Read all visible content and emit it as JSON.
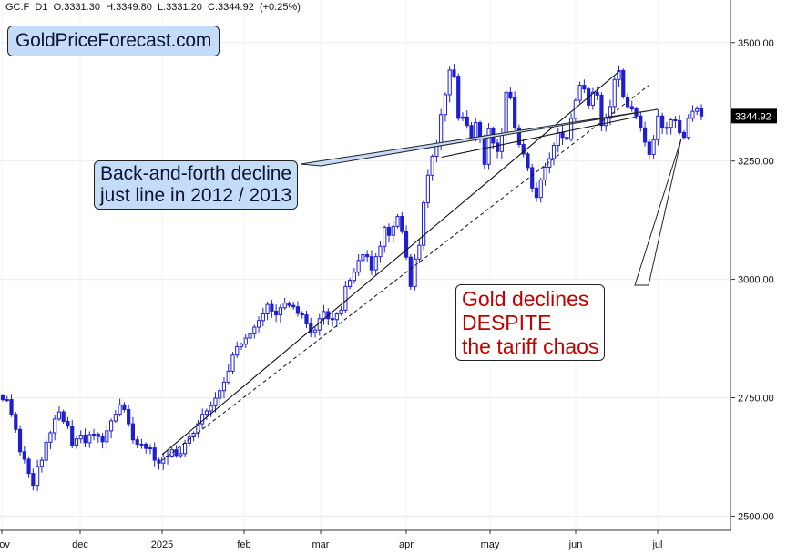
{
  "header": {
    "symbol": "GC.F",
    "interval": "D1",
    "open": "O:3331.30",
    "high": "H:3349.80",
    "low": "L:3331.20",
    "close": "C:3344.92",
    "change": "(+0.25%)"
  },
  "brand": "GoldPriceForecast.com",
  "annotations": {
    "callout1": [
      "Back-and-forth decline",
      "just line in 2012 / 2013"
    ],
    "callout2": [
      "Gold declines",
      "DESPITE",
      "the tariff chaos"
    ]
  },
  "colors": {
    "candle": "#1f1fd0",
    "callout_fill": "#c5dcf8",
    "callout2_text": "#c00000",
    "last_price_bg": "#000000"
  },
  "chart_data": {
    "type": "candlestick",
    "y_ticks": [
      "3500.00",
      "3250.00",
      "3000.00",
      "2750.00",
      "2500.00"
    ],
    "ylim": [
      2470,
      3590
    ],
    "last_price_label": "3344.92",
    "x_ticks": [
      "nov",
      "dec",
      "2025",
      "feb",
      "mar",
      "apr",
      "may",
      "jun",
      "jul"
    ],
    "grid": true,
    "close_values": [
      2746,
      2746,
      2715,
      2683,
      2636,
      2620,
      2590,
      2565,
      2605,
      2618,
      2656,
      2676,
      2705,
      2720,
      2700,
      2690,
      2650,
      2663,
      2671,
      2655,
      2672,
      2673,
      2668,
      2657,
      2680,
      2701,
      2715,
      2735,
      2725,
      2695,
      2661,
      2652,
      2652,
      2643,
      2644,
      2618,
      2612,
      2625,
      2627,
      2640,
      2628,
      2632,
      2654,
      2667,
      2675,
      2695,
      2715,
      2722,
      2733,
      2749,
      2765,
      2783,
      2806,
      2840,
      2858,
      2863,
      2876,
      2885,
      2899,
      2913,
      2927,
      2947,
      2933,
      2925,
      2940,
      2950,
      2945,
      2942,
      2928,
      2925,
      2906,
      2888,
      2893,
      2917,
      2932,
      2917,
      2915,
      2927,
      2935,
      2985,
      2998,
      3015,
      3040,
      3052,
      3048,
      3020,
      3048,
      3070,
      3110,
      3093,
      3112,
      3133,
      3101,
      3047,
      2985,
      3043,
      3072,
      3162,
      3220,
      3260,
      3286,
      3348,
      3390,
      3442,
      3429,
      3340,
      3343,
      3325,
      3300,
      3331,
      3298,
      3243,
      3318,
      3288,
      3270,
      3306,
      3395,
      3383,
      3320,
      3285,
      3265,
      3236,
      3193,
      3173,
      3210,
      3237,
      3255,
      3283,
      3310,
      3300,
      3296,
      3340,
      3378,
      3410,
      3402,
      3368,
      3395,
      3389,
      3325,
      3340,
      3365,
      3422,
      3441,
      3385,
      3365,
      3360,
      3345,
      3320,
      3290,
      3264,
      3295,
      3345,
      3320,
      3321,
      3337,
      3335,
      3310,
      3300,
      3340,
      3355,
      3360,
      3344.92
    ],
    "trendlines": [
      {
        "style": "solid",
        "from": {
          "date": "2024-12-30",
          "value": 2630
        },
        "to": {
          "date": "2025-06-20",
          "value": 3440
        }
      },
      {
        "style": "dashed",
        "from": {
          "date": "2024-12-30",
          "value": 2618
        },
        "to": {
          "date": "2025-07-01",
          "value": 3410
        }
      },
      {
        "style": "solid",
        "from": {
          "date": "2025-04-14",
          "value": 3258
        },
        "to": {
          "date": "2025-06-26",
          "value": 3343
        }
      }
    ]
  }
}
